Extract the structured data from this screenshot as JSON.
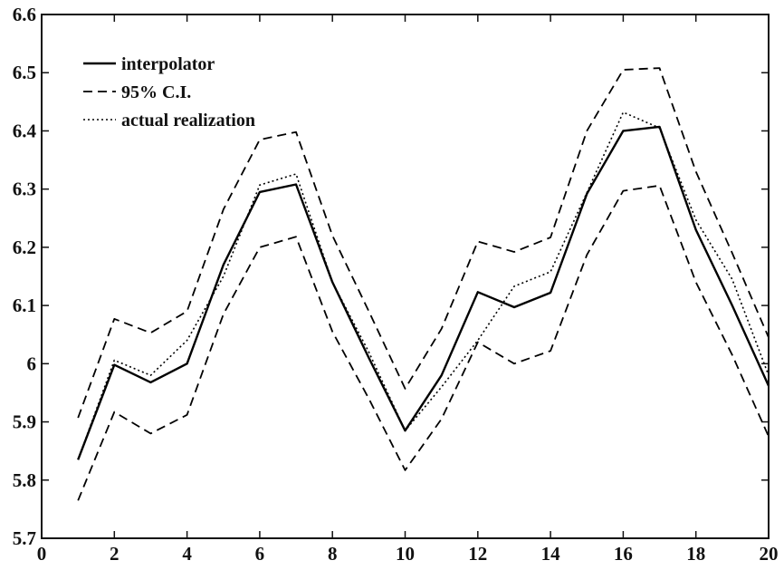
{
  "chart_data": {
    "type": "line",
    "title": "",
    "xlabel": "",
    "ylabel": "",
    "xlim": [
      0,
      20
    ],
    "ylim": [
      5.7,
      6.6
    ],
    "grid": false,
    "legend_placement": "top-left",
    "x_ticks": [
      0,
      2,
      4,
      6,
      8,
      10,
      12,
      14,
      16,
      18,
      20
    ],
    "x_tick_labels": [
      "0",
      "2",
      "4",
      "6",
      "8",
      "10",
      "12",
      "14",
      "16",
      "18",
      "20"
    ],
    "y_ticks": [
      5.7,
      5.8,
      5.9,
      6.0,
      6.1,
      6.2,
      6.3,
      6.4,
      6.5,
      6.6
    ],
    "y_tick_labels": [
      "5.7",
      "5.8",
      "5.9",
      "6",
      "6.1",
      "6.2",
      "6.3",
      "6.4",
      "6.5",
      "6.6"
    ],
    "x": [
      1,
      2,
      3,
      4,
      5,
      6,
      7,
      8,
      9,
      10,
      11,
      12,
      13,
      14,
      15,
      16,
      17,
      18,
      19,
      20
    ],
    "series": [
      {
        "name": "interpolator",
        "style": "solid",
        "color": "#000000",
        "values": [
          5.835,
          5.998,
          5.968,
          6.0,
          6.17,
          6.295,
          6.308,
          6.14,
          6.01,
          5.885,
          5.98,
          6.123,
          6.097,
          6.122,
          6.292,
          6.4,
          6.407,
          6.23,
          6.1,
          5.962
        ]
      },
      {
        "name": "95% C.I.",
        "style": "dashed",
        "color": "#000000",
        "values": [
          5.907,
          6.077,
          6.053,
          6.09,
          6.265,
          6.385,
          6.398,
          6.22,
          6.09,
          5.957,
          6.06,
          6.21,
          6.192,
          6.217,
          6.4,
          6.505,
          6.508,
          6.33,
          6.19,
          6.045
        ]
      },
      {
        "name": "",
        "style": "dashed",
        "color": "#000000",
        "values": [
          5.765,
          5.917,
          5.88,
          5.912,
          6.085,
          6.2,
          6.218,
          6.055,
          5.94,
          5.817,
          5.905,
          6.037,
          6.0,
          6.022,
          6.187,
          6.297,
          6.306,
          6.14,
          6.015,
          5.875
        ]
      },
      {
        "name": "actual realization",
        "style": "dotted",
        "color": "#000000",
        "values": [
          5.835,
          6.006,
          5.98,
          6.04,
          6.15,
          6.307,
          6.326,
          6.14,
          6.02,
          5.885,
          5.96,
          6.04,
          6.133,
          6.158,
          6.294,
          6.432,
          6.405,
          6.247,
          6.145,
          5.98
        ]
      }
    ],
    "legend": [
      {
        "label": "interpolator",
        "style": "solid"
      },
      {
        "label": "95% C.I.",
        "style": "dashed"
      },
      {
        "label": "actual realization",
        "style": "dotted"
      }
    ]
  }
}
